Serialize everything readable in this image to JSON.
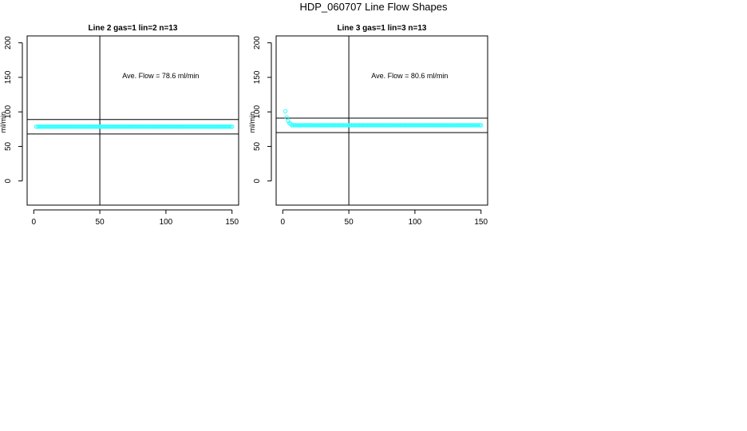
{
  "figure": {
    "title": "HDP_060707  Line Flow Shapes"
  },
  "colors": {
    "points": "#33ffff",
    "axis": "#000000"
  },
  "chart_data": [
    {
      "type": "scatter",
      "title": "Line 2 gas=1 lin=2 n=13",
      "ylabel": "ml/min",
      "xlabel": "",
      "xlim": [
        -5,
        155
      ],
      "ylim": [
        -35,
        210
      ],
      "x_ticks": [
        0,
        50,
        100,
        150
      ],
      "y_ticks": [
        0,
        50,
        100,
        150,
        200
      ],
      "hlines": [
        68,
        89
      ],
      "vlines": [
        50
      ],
      "annotation": "Ave. Flow =  78.6  ml/min",
      "annotation_pos": {
        "x": 67,
        "y": 149
      },
      "series": [
        {
          "x_start": 2,
          "x_end": 150,
          "step": 1,
          "values_initial": [],
          "baseline": 78.6
        }
      ]
    },
    {
      "type": "scatter",
      "title": "Line 3 gas=1 lin=3 n=13",
      "ylabel": "ml/min",
      "xlabel": "",
      "xlim": [
        -5,
        155
      ],
      "ylim": [
        -35,
        210
      ],
      "x_ticks": [
        0,
        50,
        100,
        150
      ],
      "y_ticks": [
        0,
        50,
        100,
        150,
        200
      ],
      "hlines": [
        70,
        91
      ],
      "vlines": [
        50
      ],
      "annotation": "Ave. Flow =  80.6  ml/min",
      "annotation_pos": {
        "x": 67,
        "y": 149
      },
      "series": [
        {
          "x_start": 2,
          "x_end": 150,
          "step": 1,
          "values_initial": [
            101,
            92,
            87,
            84,
            82.5
          ],
          "baseline": 80.6
        }
      ]
    }
  ]
}
